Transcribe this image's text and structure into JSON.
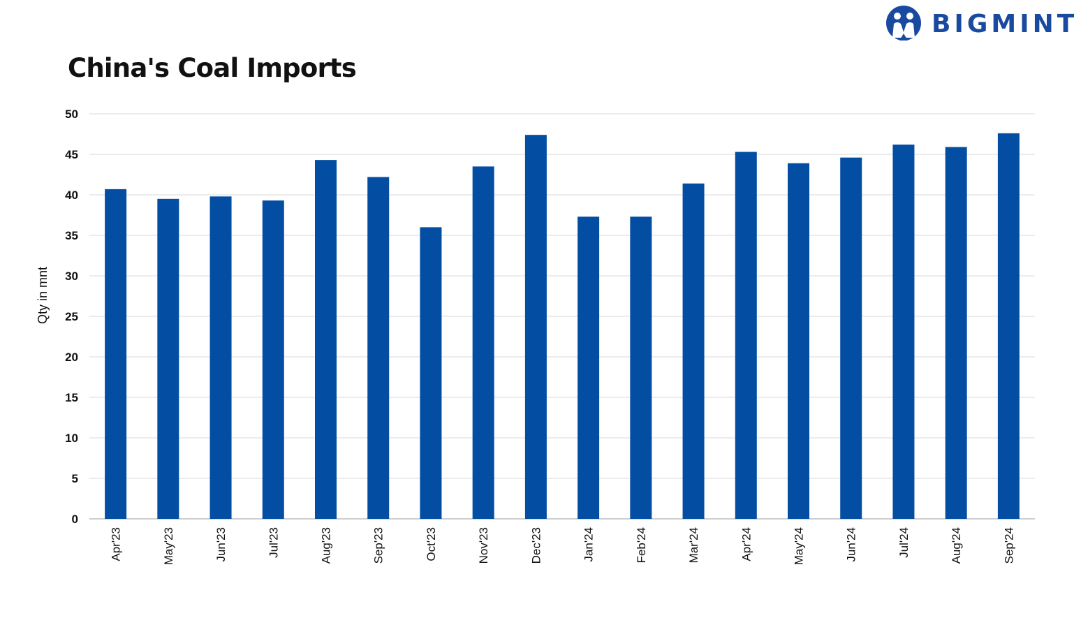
{
  "brand": {
    "name": "BIGMINT",
    "color": "#1a4aa0"
  },
  "chart_data": {
    "type": "bar",
    "title": "China's Coal Imports",
    "xlabel": "",
    "ylabel": "Qty in mnt",
    "ylim": [
      0,
      50
    ],
    "yticks": [
      0,
      5,
      10,
      15,
      20,
      25,
      30,
      35,
      40,
      45,
      50
    ],
    "grid": true,
    "bar_color": "#034ea2",
    "categories": [
      "Apr'23",
      "May'23",
      "Jun'23",
      "Jul'23",
      "Aug'23",
      "Sep'23",
      "Oct'23",
      "Nov'23",
      "Dec'23",
      "Jan'24",
      "Feb'24",
      "Mar'24",
      "Apr'24",
      "May'24",
      "Jun'24",
      "Jul'24",
      "Aug'24",
      "Sep'24"
    ],
    "values": [
      40.7,
      39.5,
      39.8,
      39.3,
      44.3,
      42.2,
      36.0,
      43.5,
      47.4,
      37.3,
      37.3,
      41.4,
      45.3,
      43.9,
      44.6,
      46.2,
      45.9,
      47.6
    ]
  }
}
